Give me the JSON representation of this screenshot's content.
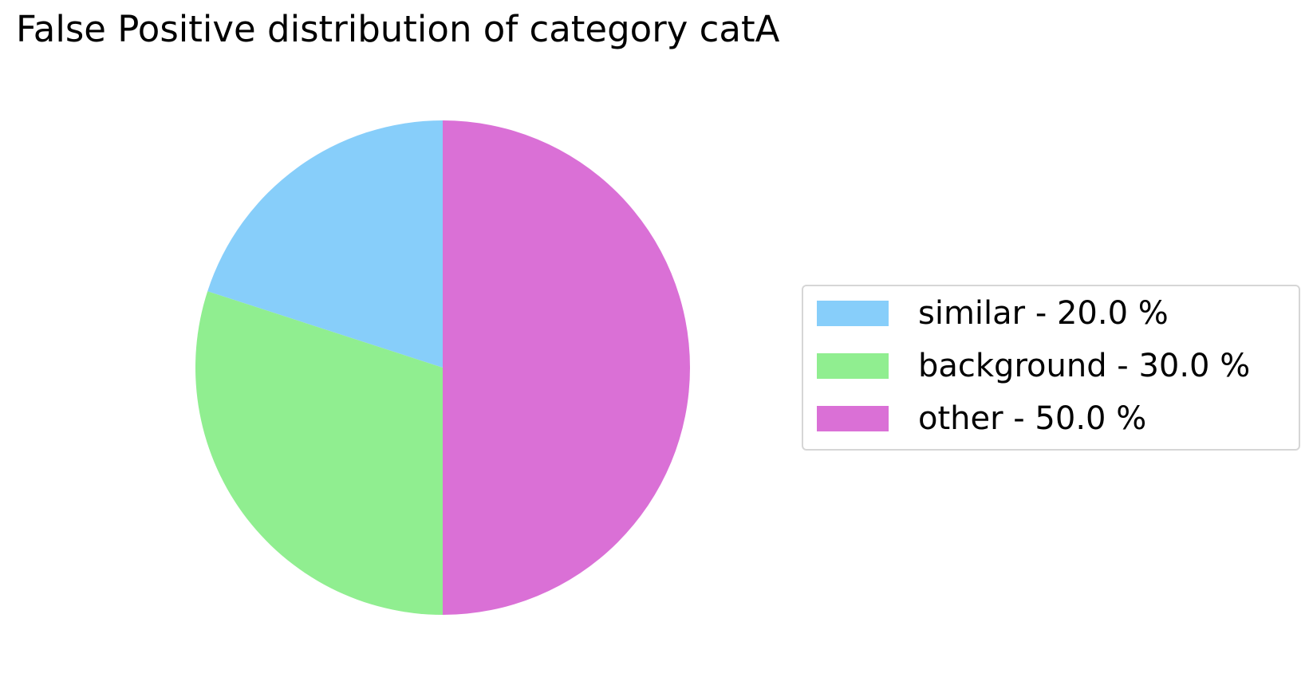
{
  "chart_data": {
    "type": "pie",
    "title": "False Positive distribution of category catA",
    "start_angle_deg": 90,
    "direction": "counterclockwise",
    "legend_position": "right",
    "slices": [
      {
        "name": "similar",
        "value": 20.0,
        "label": "similar - 20.0 %",
        "color": "#87CEFA"
      },
      {
        "name": "background",
        "value": 30.0,
        "label": "background - 30.0 %",
        "color": "#90EE90"
      },
      {
        "name": "other",
        "value": 50.0,
        "label": "other - 50.0 %",
        "color": "#DA70D6"
      }
    ]
  }
}
